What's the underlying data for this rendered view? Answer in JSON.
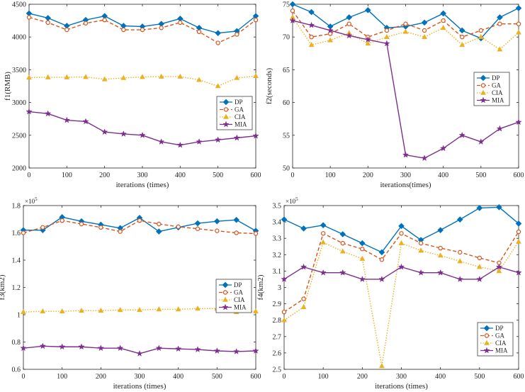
{
  "chart_data": [
    {
      "type": "line",
      "xlabel": "iterations (times)",
      "ylabel": "f1(RMB)",
      "multiplier": "",
      "xlim": [
        0,
        600
      ],
      "ylim": [
        2000,
        4500
      ],
      "xticks": [
        0,
        100,
        200,
        300,
        400,
        500,
        600
      ],
      "yticks": [
        2000,
        2500,
        3000,
        3500,
        4000,
        4500
      ],
      "ytick_labels": [
        "2000",
        "2500",
        "3000",
        "3500",
        "4000",
        "4500"
      ],
      "legend_position": "right-middle",
      "x": [
        0,
        50,
        100,
        150,
        200,
        250,
        300,
        350,
        400,
        450,
        500,
        550,
        600
      ],
      "series": [
        {
          "name": "DP",
          "color": "#0072BD",
          "dash": "solid",
          "marker": "diamond",
          "values": [
            4360,
            4290,
            4170,
            4260,
            4320,
            4170,
            4160,
            4200,
            4280,
            4140,
            4060,
            4090,
            4320
          ]
        },
        {
          "name": "GA",
          "color": "#D95319",
          "dash": "dashed",
          "marker": "circle",
          "values": [
            4300,
            4220,
            4110,
            4210,
            4260,
            4110,
            4110,
            4140,
            4220,
            4080,
            3910,
            4040,
            4260
          ]
        },
        {
          "name": "CIA",
          "color": "#EDB120",
          "dash": "dotted",
          "marker": "triangle",
          "values": [
            3380,
            3385,
            3385,
            3390,
            3355,
            3375,
            3390,
            3395,
            3395,
            3345,
            3250,
            3375,
            3405
          ]
        },
        {
          "name": "MIA",
          "color": "#7E2F8E",
          "dash": "solid",
          "marker": "star",
          "values": [
            2860,
            2830,
            2730,
            2710,
            2550,
            2520,
            2500,
            2400,
            2350,
            2400,
            2430,
            2460,
            2490
          ]
        }
      ]
    },
    {
      "type": "line",
      "xlabel": "iterations(times)",
      "ylabel": "f2(seconds)",
      "multiplier": "",
      "xlim": [
        0,
        600
      ],
      "ylim": [
        50,
        75
      ],
      "xticks": [
        0,
        100,
        200,
        300,
        400,
        500,
        600
      ],
      "yticks": [
        50,
        55,
        60,
        65,
        70,
        75
      ],
      "ytick_labels": [
        "50",
        "55",
        "60",
        "65",
        "70",
        "75"
      ],
      "legend_position": "right-middle",
      "x": [
        0,
        50,
        100,
        150,
        200,
        250,
        300,
        350,
        400,
        450,
        500,
        550,
        600
      ],
      "series": [
        {
          "name": "DP",
          "color": "#0072BD",
          "dash": "solid",
          "marker": "diamond",
          "values": [
            75.0,
            73.8,
            71.6,
            73.0,
            74.1,
            71.4,
            71.6,
            72.2,
            73.6,
            71.0,
            69.8,
            73.0,
            74.4
          ]
        },
        {
          "name": "GA",
          "color": "#D95319",
          "dash": "dashed",
          "marker": "circle",
          "values": [
            74.0,
            70.0,
            70.5,
            72.0,
            70.0,
            71.0,
            72.0,
            71.0,
            72.5,
            70.0,
            71.0,
            72.0,
            72.0
          ]
        },
        {
          "name": "CIA",
          "color": "#EDB120",
          "dash": "dotted",
          "marker": "triangle",
          "values": [
            73.0,
            68.8,
            69.5,
            70.6,
            69.0,
            70.0,
            70.8,
            70.0,
            71.4,
            68.8,
            70.0,
            68.1,
            70.7
          ]
        },
        {
          "name": "MIA",
          "color": "#7E2F8E",
          "dash": "solid",
          "marker": "star",
          "values": [
            72.5,
            71.8,
            71.0,
            70.2,
            69.6,
            69.0,
            52.0,
            51.5,
            53.0,
            55.0,
            54.0,
            56.0,
            57.0
          ]
        }
      ]
    },
    {
      "type": "line",
      "xlabel": "iterations (times)",
      "ylabel": "f3(km2)",
      "multiplier": "×10",
      "multiplier_exp": "5",
      "xlim": [
        0,
        600
      ],
      "ylim": [
        0.6,
        1.8
      ],
      "xticks": [
        0,
        100,
        200,
        300,
        400,
        500,
        600
      ],
      "yticks": [
        0.6,
        0.8,
        1.0,
        1.2,
        1.4,
        1.6,
        1.8
      ],
      "ytick_labels": [
        "0.6",
        "0.8",
        "1",
        "1.2",
        "1.4",
        "1.6",
        "1.8"
      ],
      "legend_position": "right-middle",
      "x": [
        0,
        50,
        100,
        150,
        200,
        250,
        300,
        350,
        400,
        450,
        500,
        550,
        600
      ],
      "series": [
        {
          "name": "DP",
          "color": "#0072BD",
          "dash": "solid",
          "marker": "diamond",
          "values": [
            1.62,
            1.62,
            1.715,
            1.685,
            1.66,
            1.635,
            1.71,
            1.61,
            1.64,
            1.67,
            1.685,
            1.695,
            1.615
          ]
        },
        {
          "name": "GA",
          "color": "#D95319",
          "dash": "dashed",
          "marker": "circle",
          "values": [
            1.6,
            1.64,
            1.69,
            1.665,
            1.64,
            1.61,
            1.69,
            1.665,
            1.645,
            1.63,
            1.615,
            1.6,
            1.595
          ]
        },
        {
          "name": "CIA",
          "color": "#EDB120",
          "dash": "dotted",
          "marker": "triangle",
          "values": [
            1.02,
            1.025,
            1.025,
            1.03,
            1.03,
            1.035,
            1.035,
            1.04,
            1.04,
            1.045,
            1.045,
            1.02,
            1.025
          ]
        },
        {
          "name": "MIA",
          "color": "#7E2F8E",
          "dash": "solid",
          "marker": "star",
          "values": [
            0.755,
            0.77,
            0.765,
            0.765,
            0.755,
            0.755,
            0.715,
            0.755,
            0.75,
            0.745,
            0.735,
            0.73,
            0.735
          ]
        }
      ]
    },
    {
      "type": "line",
      "xlabel": "iterations (times)",
      "ylabel": "f4(km2)",
      "multiplier": "×10",
      "multiplier_exp": "5",
      "xlim": [
        0,
        600
      ],
      "ylim": [
        2.5,
        3.5
      ],
      "xticks": [
        0,
        100,
        200,
        300,
        400,
        500,
        600
      ],
      "yticks": [
        2.5,
        2.6,
        2.7,
        2.8,
        2.9,
        3.0,
        3.1,
        3.2,
        3.3,
        3.4,
        3.5
      ],
      "ytick_labels": [
        "2.5",
        "2.6",
        "2.7",
        "2.8",
        "2.9",
        "3",
        "3.1",
        "3.2",
        "3.3",
        "3.4",
        "3.5"
      ],
      "legend_position": "bottom-right",
      "x": [
        0,
        50,
        100,
        150,
        200,
        250,
        300,
        350,
        400,
        450,
        500,
        550,
        600
      ],
      "series": [
        {
          "name": "DP",
          "color": "#0072BD",
          "dash": "solid",
          "marker": "diamond",
          "values": [
            3.415,
            3.36,
            3.38,
            3.325,
            3.27,
            3.215,
            3.375,
            3.29,
            3.35,
            3.415,
            3.485,
            3.49,
            3.39
          ]
        },
        {
          "name": "GA",
          "color": "#D95319",
          "dash": "dashed",
          "marker": "circle",
          "values": [
            2.85,
            2.93,
            3.33,
            3.27,
            3.235,
            3.17,
            3.33,
            3.27,
            3.24,
            3.215,
            3.18,
            3.15,
            3.34
          ]
        },
        {
          "name": "CIA",
          "color": "#EDB120",
          "dash": "dotted",
          "marker": "triangle",
          "values": [
            2.8,
            2.88,
            3.275,
            3.22,
            3.175,
            2.52,
            3.27,
            3.225,
            3.195,
            3.16,
            3.125,
            3.1,
            3.28
          ]
        },
        {
          "name": "MIA",
          "color": "#7E2F8E",
          "dash": "solid",
          "marker": "star",
          "values": [
            3.05,
            3.125,
            3.09,
            3.09,
            3.05,
            3.05,
            3.125,
            3.09,
            3.09,
            3.05,
            3.05,
            3.125,
            3.09
          ]
        }
      ]
    }
  ]
}
